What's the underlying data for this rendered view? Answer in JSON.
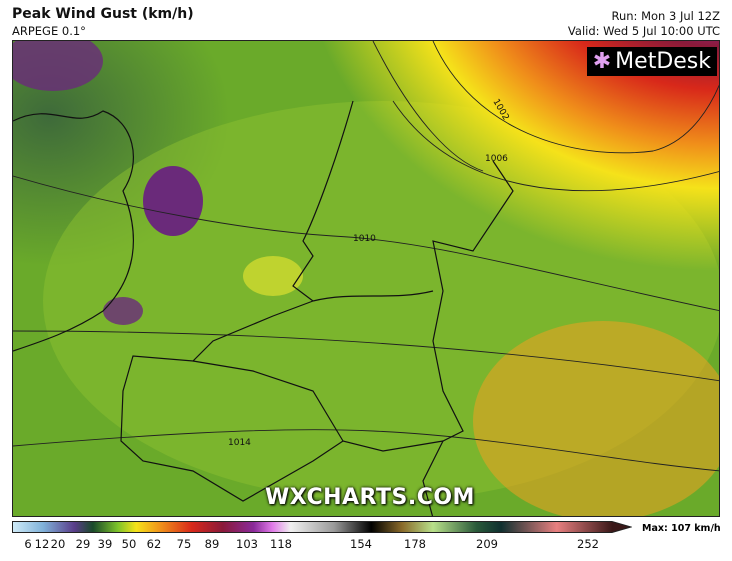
{
  "header": {
    "title": "Peak Wind Gust (km/h)",
    "model": "ARPEGE 0.1°",
    "run": "Run: Mon 3 Jul 12Z",
    "valid": "Valid: Wed 5 Jul 10:00 UTC"
  },
  "map": {
    "logo": "MetDesk",
    "watermark": "WXCHARTS.COM",
    "isobar_labels": [
      "1002",
      "1006",
      "1010",
      "1014"
    ]
  },
  "legend": {
    "ticks": [
      "6",
      "12",
      "20",
      "29",
      "39",
      "50",
      "62",
      "75",
      "89",
      "103",
      "118",
      "154",
      "178",
      "209",
      "252"
    ],
    "max": "Max: 107 km/h",
    "colors": [
      "#c8e6f5",
      "#7fb0d8",
      "#5a3d8a",
      "#2e6a2e",
      "#7cc22a",
      "#f5e21a",
      "#f0901a",
      "#d8281a",
      "#8a1a3a",
      "#8a2a9a",
      "#e07ae8",
      "#f0f0f0",
      "#9a9a9a",
      "#000000",
      "#8a6a2a",
      "#b8e08a",
      "#2a5a3a",
      "#103030",
      "#e88080",
      "#3a1818"
    ]
  }
}
